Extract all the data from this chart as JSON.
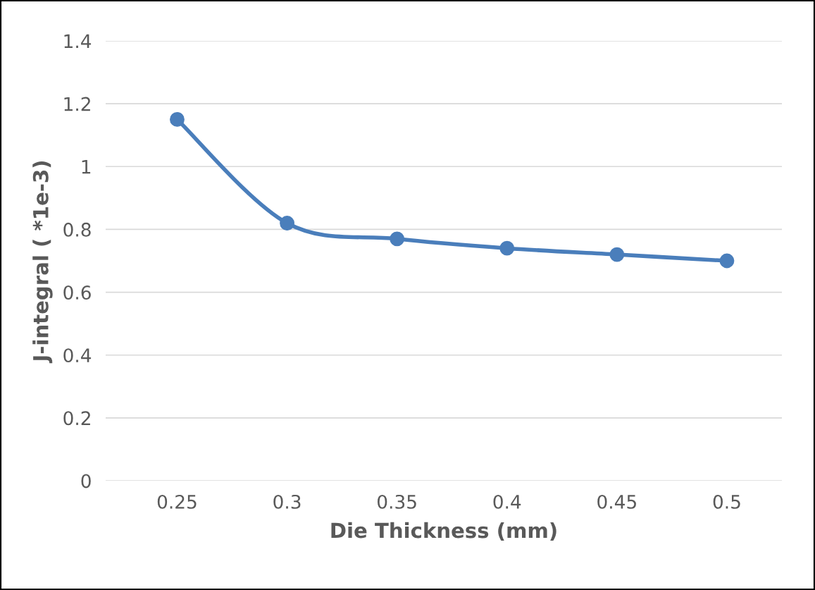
{
  "chart_data": {
    "type": "line",
    "xlabel": "Die Thickness (mm)",
    "ylabel": "J-integral ( *1e-3)",
    "categories": [
      "0.25",
      "0.3",
      "0.35",
      "0.4",
      "0.45",
      "0.5"
    ],
    "series": [
      {
        "color": "#4a7ebb",
        "values": [
          1.15,
          0.82,
          0.77,
          0.74,
          0.72,
          0.7
        ]
      }
    ],
    "ylim": [
      0,
      1.4
    ],
    "yticks": [
      0,
      0.2,
      0.4,
      0.6,
      0.8,
      1,
      1.2,
      1.4
    ],
    "grid": "y",
    "marker": "circle",
    "line_style": "solid"
  }
}
